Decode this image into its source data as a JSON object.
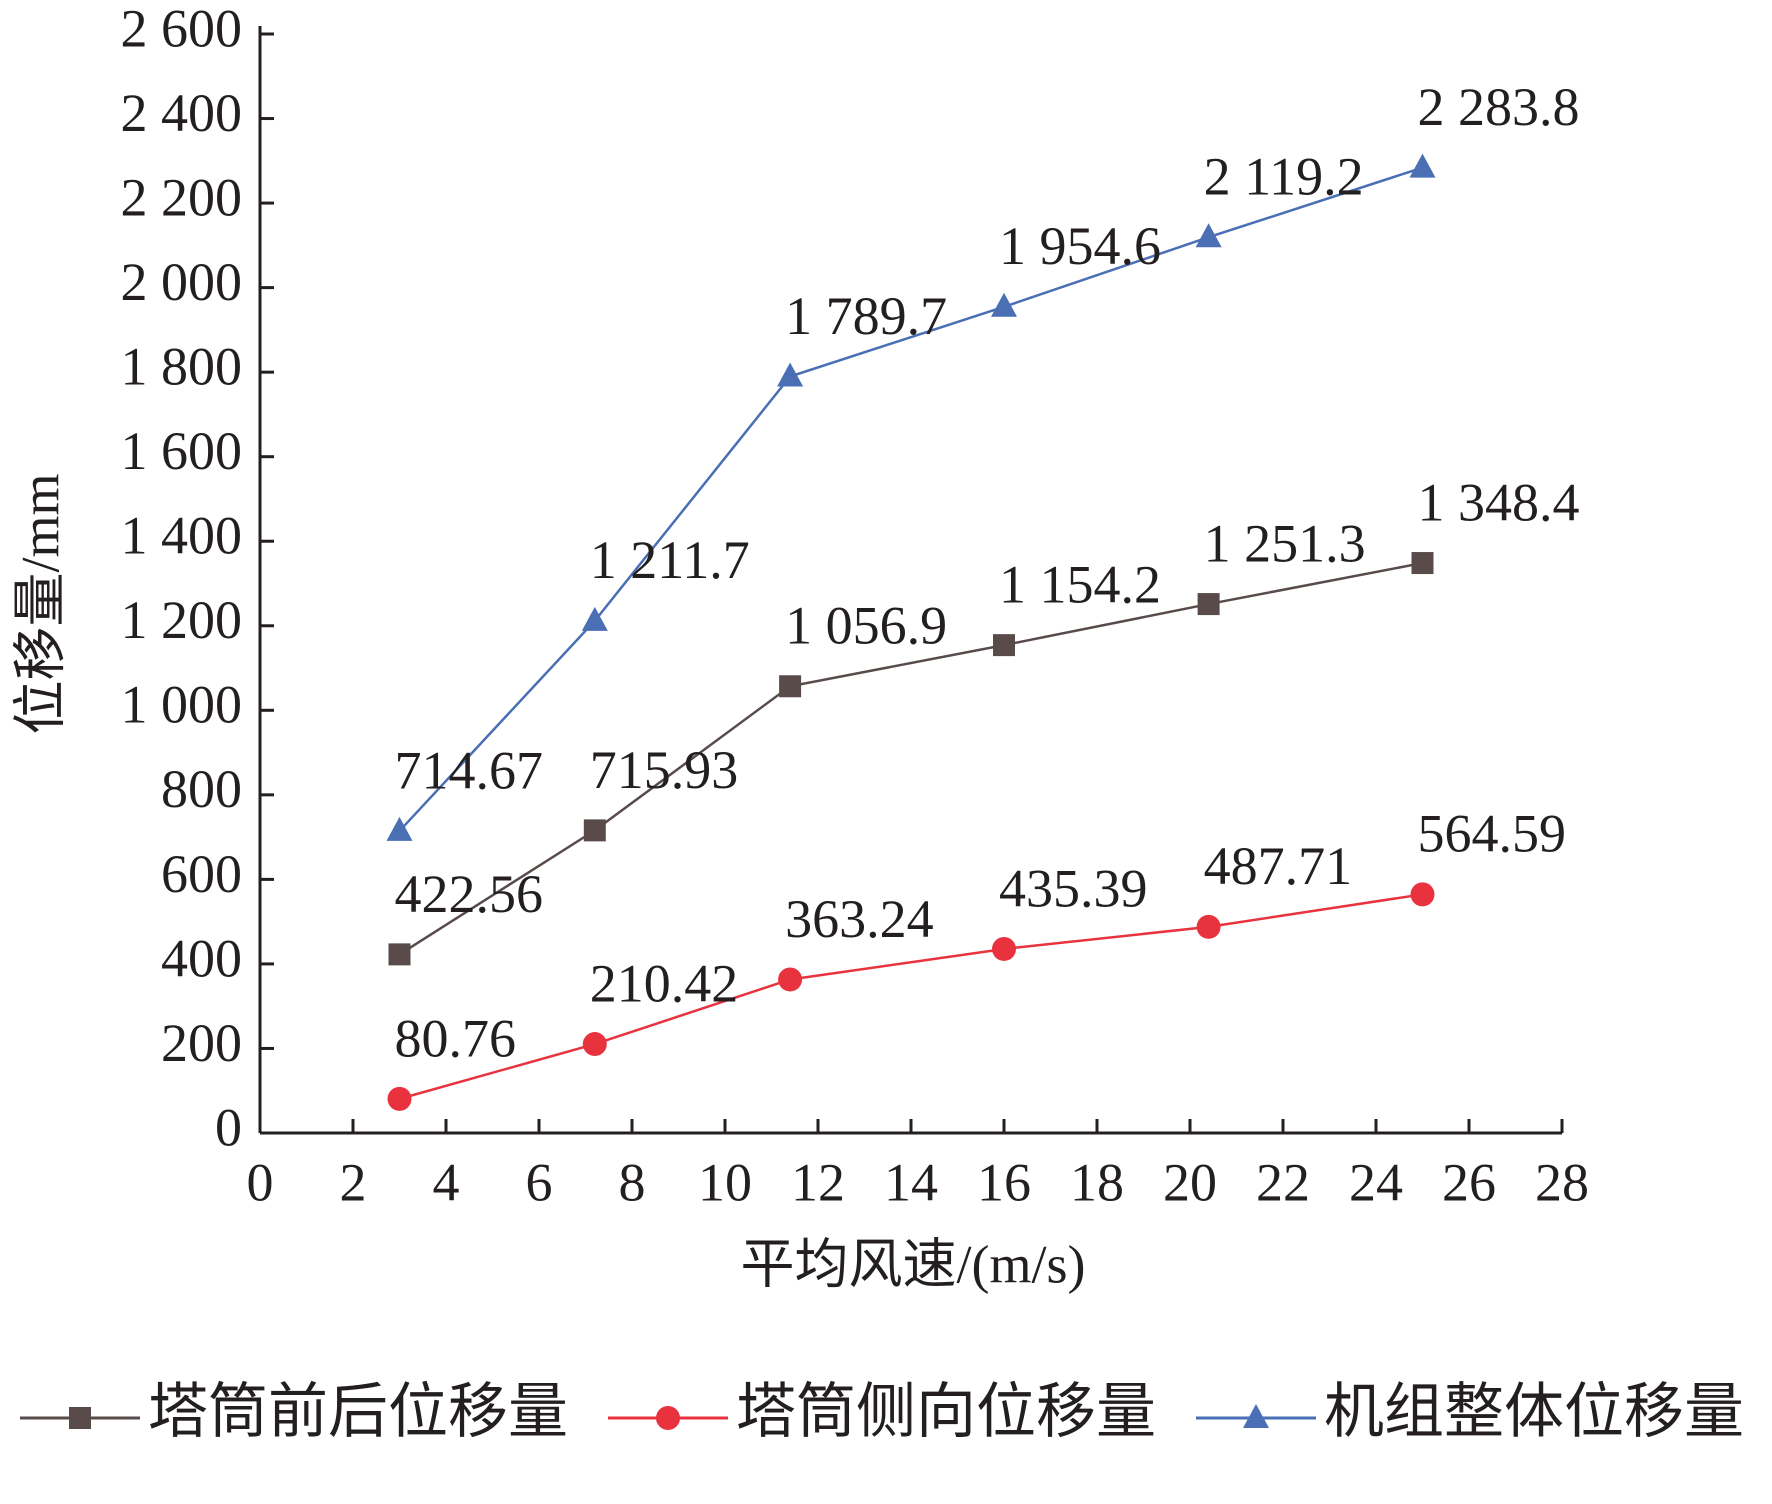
{
  "chart_data": {
    "type": "line",
    "x_label": "平均风速/(m/s)",
    "y_label": "位移量/mm",
    "x": [
      3,
      7.2,
      11.4,
      16,
      20.4,
      25
    ],
    "xlim": [
      0,
      28
    ],
    "xticks": [
      0,
      2,
      4,
      6,
      8,
      10,
      12,
      14,
      16,
      18,
      20,
      22,
      24,
      26,
      28
    ],
    "ylim": [
      0,
      2600
    ],
    "yticks": [
      0,
      200,
      400,
      600,
      800,
      {
        "value": 1000,
        "label": "1 000"
      },
      {
        "value": 1200,
        "label": "1 200"
      },
      {
        "value": 1400,
        "label": "1 400"
      },
      {
        "value": 1600,
        "label": "1 600"
      },
      {
        "value": 1800,
        "label": "1 800"
      },
      {
        "value": 2000,
        "label": "2 000"
      },
      {
        "value": 2200,
        "label": "2 200"
      },
      {
        "value": 2400,
        "label": "2 400"
      },
      {
        "value": 2600,
        "label": "2 600"
      }
    ],
    "legend": "bottom",
    "series": [
      {
        "name": "塔筒前后位移量",
        "color": "#5a4b4b",
        "marker": "square",
        "values": [
          422.56,
          715.93,
          1056.9,
          1154.2,
          1251.3,
          1348.4
        ],
        "value_labels": [
          "422.56",
          "715.93",
          "1 056.9",
          "1 154.2",
          "1 251.3",
          "1 348.4"
        ]
      },
      {
        "name": "塔筒侧向位移量",
        "color": "#e8333f",
        "marker": "circle",
        "values": [
          80.76,
          210.42,
          363.24,
          435.39,
          487.71,
          564.59
        ],
        "value_labels": [
          "80.76",
          "210.42",
          "363.24",
          "435.39",
          "487.71",
          "564.59"
        ]
      },
      {
        "name": "机组整体位移量",
        "color": "#4a6fb5",
        "marker": "triangle",
        "values": [
          714.67,
          1211.7,
          1789.7,
          1954.6,
          2119.2,
          2283.8
        ],
        "value_labels": [
          "714.67",
          "1 211.7",
          "1 789.7",
          "1 954.6",
          "2 119.2",
          "2 283.8"
        ]
      }
    ]
  }
}
